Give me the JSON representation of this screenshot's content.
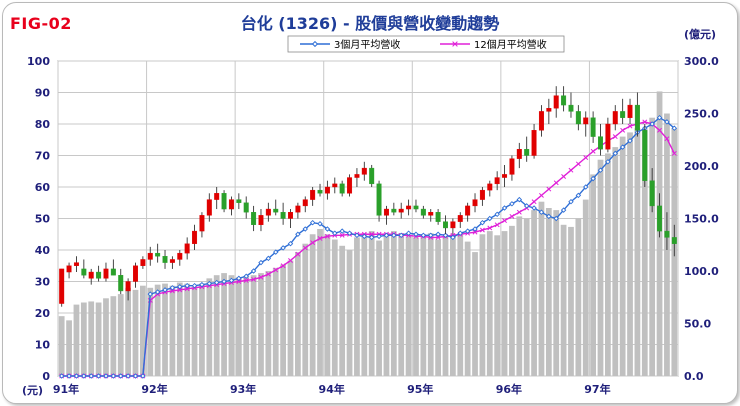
{
  "header": {
    "fig_label": "FIG-02",
    "title": "台化 (1326) - 股價與營收變動趨勢"
  },
  "chart_data": {
    "type": "bar",
    "title": "台化 (1326) - 股價與營收變動趨勢",
    "left_axis": {
      "unit": "(元)",
      "range": [
        0,
        100
      ],
      "ticks": [
        0,
        10,
        20,
        30,
        40,
        50,
        60,
        70,
        80,
        90,
        100
      ]
    },
    "right_axis": {
      "unit": "(億元)",
      "range": [
        0,
        300
      ],
      "ticks": [
        "0.0",
        "50.0",
        "100.0",
        "150.0",
        "200.0",
        "250.0",
        "300.0"
      ]
    },
    "x_labels": [
      "91年",
      "92年",
      "93年",
      "94年",
      "95年",
      "96年",
      "97年"
    ],
    "months_per_year": 12,
    "total_months": 84,
    "grid": true,
    "legend_position": "top-center",
    "colors": {
      "up": "#e00000",
      "down": "#2aa02a",
      "revenue_bar": "#c0c0c0",
      "avg3": "#2f6fd6",
      "avg12": "#e020d8",
      "grid": "#c8c8c8"
    },
    "revenue_monthly": [
      57,
      53,
      68,
      70,
      71,
      70,
      74,
      76,
      78,
      84,
      82,
      86,
      84,
      87,
      88,
      86,
      89,
      88,
      85,
      88,
      93,
      96,
      98,
      96,
      94,
      95,
      96,
      98,
      100,
      103,
      106,
      110,
      118,
      126,
      135,
      140,
      135,
      130,
      124,
      120,
      132,
      136,
      138,
      129,
      136,
      138,
      136,
      133,
      132,
      134,
      136,
      130,
      133,
      135,
      136,
      128,
      118,
      135,
      138,
      134,
      138,
      143,
      152,
      150,
      158,
      166,
      160,
      158,
      144,
      142,
      150,
      168,
      192,
      206,
      212,
      218,
      228,
      232,
      236,
      235,
      246,
      271,
      250,
      236
    ],
    "series": [
      {
        "name": "3個月平均營收",
        "axis": "right",
        "values": [
          null,
          null,
          null,
          null,
          null,
          null,
          null,
          null,
          null,
          null,
          null,
          null,
          null,
          null,
          null,
          null,
          null,
          null,
          null,
          null,
          null,
          null,
          null,
          null,
          null,
          null,
          null,
          null,
          null,
          null,
          null,
          null,
          null,
          null,
          null,
          null,
          null,
          null,
          null,
          null,
          null,
          null,
          null,
          null,
          null,
          null,
          null,
          null,
          null,
          null,
          null,
          null,
          null,
          null,
          null,
          null,
          null,
          null,
          null,
          null,
          null,
          null,
          null,
          null,
          null,
          null,
          null,
          null,
          null,
          null,
          null,
          null,
          null,
          null,
          null,
          null,
          null,
          null,
          null,
          null,
          null,
          null,
          null,
          null
        ],
        "values_full": [
          0,
          0,
          0,
          0,
          0,
          0,
          0,
          0,
          0,
          0,
          0,
          0,
          78,
          80,
          82,
          84,
          85,
          86,
          86,
          87,
          88,
          89,
          90,
          91,
          93,
          95,
          100,
          108,
          112,
          118,
          122,
          126,
          135,
          140,
          146,
          145,
          140,
          136,
          138,
          136,
          134,
          133,
          132,
          133,
          134,
          134,
          134,
          136,
          135,
          134,
          134,
          135,
          134,
          132,
          136,
          138,
          140,
          146,
          150,
          154,
          160,
          164,
          168,
          162,
          160,
          156,
          152,
          150,
          158,
          166,
          172,
          180,
          188,
          196,
          204,
          212,
          218,
          224,
          232,
          236,
          240,
          246,
          242,
          236
        ]
      },
      {
        "name": "12個月平均營收",
        "axis": "right",
        "values_full": [
          0,
          0,
          0,
          0,
          0,
          0,
          0,
          0,
          0,
          0,
          0,
          0,
          72,
          78,
          80,
          81,
          82,
          83,
          84,
          85,
          86,
          87,
          88,
          89,
          90,
          91,
          92,
          94,
          97,
          101,
          105,
          110,
          116,
          122,
          127,
          131,
          133,
          134,
          134,
          135,
          135,
          135,
          135,
          135,
          135,
          135,
          134,
          134,
          133,
          133,
          132,
          132,
          133,
          134,
          135,
          136,
          137,
          139,
          141,
          144,
          148,
          152,
          156,
          160,
          166,
          172,
          178,
          184,
          190,
          196,
          202,
          208,
          214,
          219,
          224,
          228,
          234,
          238,
          240,
          242,
          240,
          234,
          226,
          212
        ]
      }
    ],
    "price_monthly": [
      [
        23,
        34,
        22,
        34
      ],
      [
        33,
        36,
        31,
        35
      ],
      [
        35,
        38,
        33,
        36
      ],
      [
        34,
        37,
        31,
        32
      ],
      [
        31,
        34,
        29,
        33
      ],
      [
        33,
        35,
        30,
        31
      ],
      [
        31,
        36,
        30,
        34
      ],
      [
        34,
        37,
        32,
        32
      ],
      [
        32,
        34,
        26,
        27
      ],
      [
        27,
        31,
        24,
        30
      ],
      [
        30,
        36,
        28,
        35
      ],
      [
        35,
        38,
        34,
        37
      ],
      [
        37,
        41,
        35,
        39
      ],
      [
        39,
        42,
        36,
        38
      ],
      [
        38,
        40,
        34,
        36
      ],
      [
        36,
        38,
        34,
        37
      ],
      [
        37,
        40,
        35,
        39
      ],
      [
        39,
        44,
        37,
        42
      ],
      [
        42,
        48,
        40,
        46
      ],
      [
        46,
        52,
        44,
        51
      ],
      [
        51,
        58,
        49,
        56
      ],
      [
        56,
        60,
        53,
        58
      ],
      [
        58,
        59,
        52,
        53
      ],
      [
        53,
        57,
        51,
        56
      ],
      [
        56,
        58,
        53,
        55
      ],
      [
        55,
        57,
        50,
        52
      ],
      [
        52,
        54,
        46,
        48
      ],
      [
        48,
        53,
        46,
        51
      ],
      [
        51,
        55,
        49,
        53
      ],
      [
        53,
        56,
        51,
        52
      ],
      [
        52,
        55,
        48,
        50
      ],
      [
        50,
        53,
        47,
        52
      ],
      [
        52,
        55,
        50,
        54
      ],
      [
        54,
        57,
        52,
        56
      ],
      [
        56,
        60,
        54,
        59
      ],
      [
        59,
        61,
        57,
        58
      ],
      [
        58,
        62,
        56,
        60
      ],
      [
        60,
        63,
        58,
        61
      ],
      [
        61,
        62,
        57,
        58
      ],
      [
        58,
        64,
        57,
        63
      ],
      [
        63,
        66,
        60,
        64
      ],
      [
        64,
        68,
        62,
        66
      ],
      [
        66,
        67,
        60,
        61
      ],
      [
        61,
        62,
        49,
        51
      ],
      [
        51,
        54,
        48,
        53
      ],
      [
        53,
        55,
        51,
        52
      ],
      [
        52,
        55,
        50,
        53
      ],
      [
        53,
        56,
        51,
        54
      ],
      [
        54,
        56,
        52,
        53
      ],
      [
        53,
        54,
        50,
        51
      ],
      [
        51,
        53,
        49,
        52
      ],
      [
        52,
        53,
        48,
        49
      ],
      [
        49,
        51,
        45,
        47
      ],
      [
        47,
        50,
        45,
        49
      ],
      [
        49,
        52,
        47,
        51
      ],
      [
        51,
        55,
        49,
        54
      ],
      [
        54,
        58,
        52,
        56
      ],
      [
        56,
        60,
        54,
        59
      ],
      [
        59,
        62,
        57,
        61
      ],
      [
        61,
        65,
        59,
        63
      ],
      [
        63,
        67,
        60,
        64
      ],
      [
        64,
        70,
        62,
        69
      ],
      [
        69,
        74,
        66,
        72
      ],
      [
        72,
        76,
        68,
        70
      ],
      [
        70,
        80,
        69,
        78
      ],
      [
        78,
        86,
        76,
        84
      ],
      [
        84,
        88,
        80,
        85
      ],
      [
        85,
        92,
        82,
        89
      ],
      [
        89,
        92,
        84,
        86
      ],
      [
        86,
        90,
        82,
        84
      ],
      [
        84,
        86,
        78,
        80
      ],
      [
        80,
        84,
        76,
        82
      ],
      [
        82,
        84,
        74,
        76
      ],
      [
        76,
        80,
        70,
        72
      ],
      [
        72,
        82,
        71,
        80
      ],
      [
        80,
        86,
        78,
        84
      ],
      [
        84,
        88,
        80,
        82
      ],
      [
        82,
        88,
        80,
        86
      ],
      [
        86,
        90,
        76,
        78
      ],
      [
        78,
        80,
        60,
        62
      ],
      [
        62,
        66,
        52,
        54
      ],
      [
        54,
        58,
        44,
        46
      ],
      [
        46,
        52,
        40,
        44
      ],
      [
        44,
        48,
        38,
        42
      ]
    ]
  }
}
